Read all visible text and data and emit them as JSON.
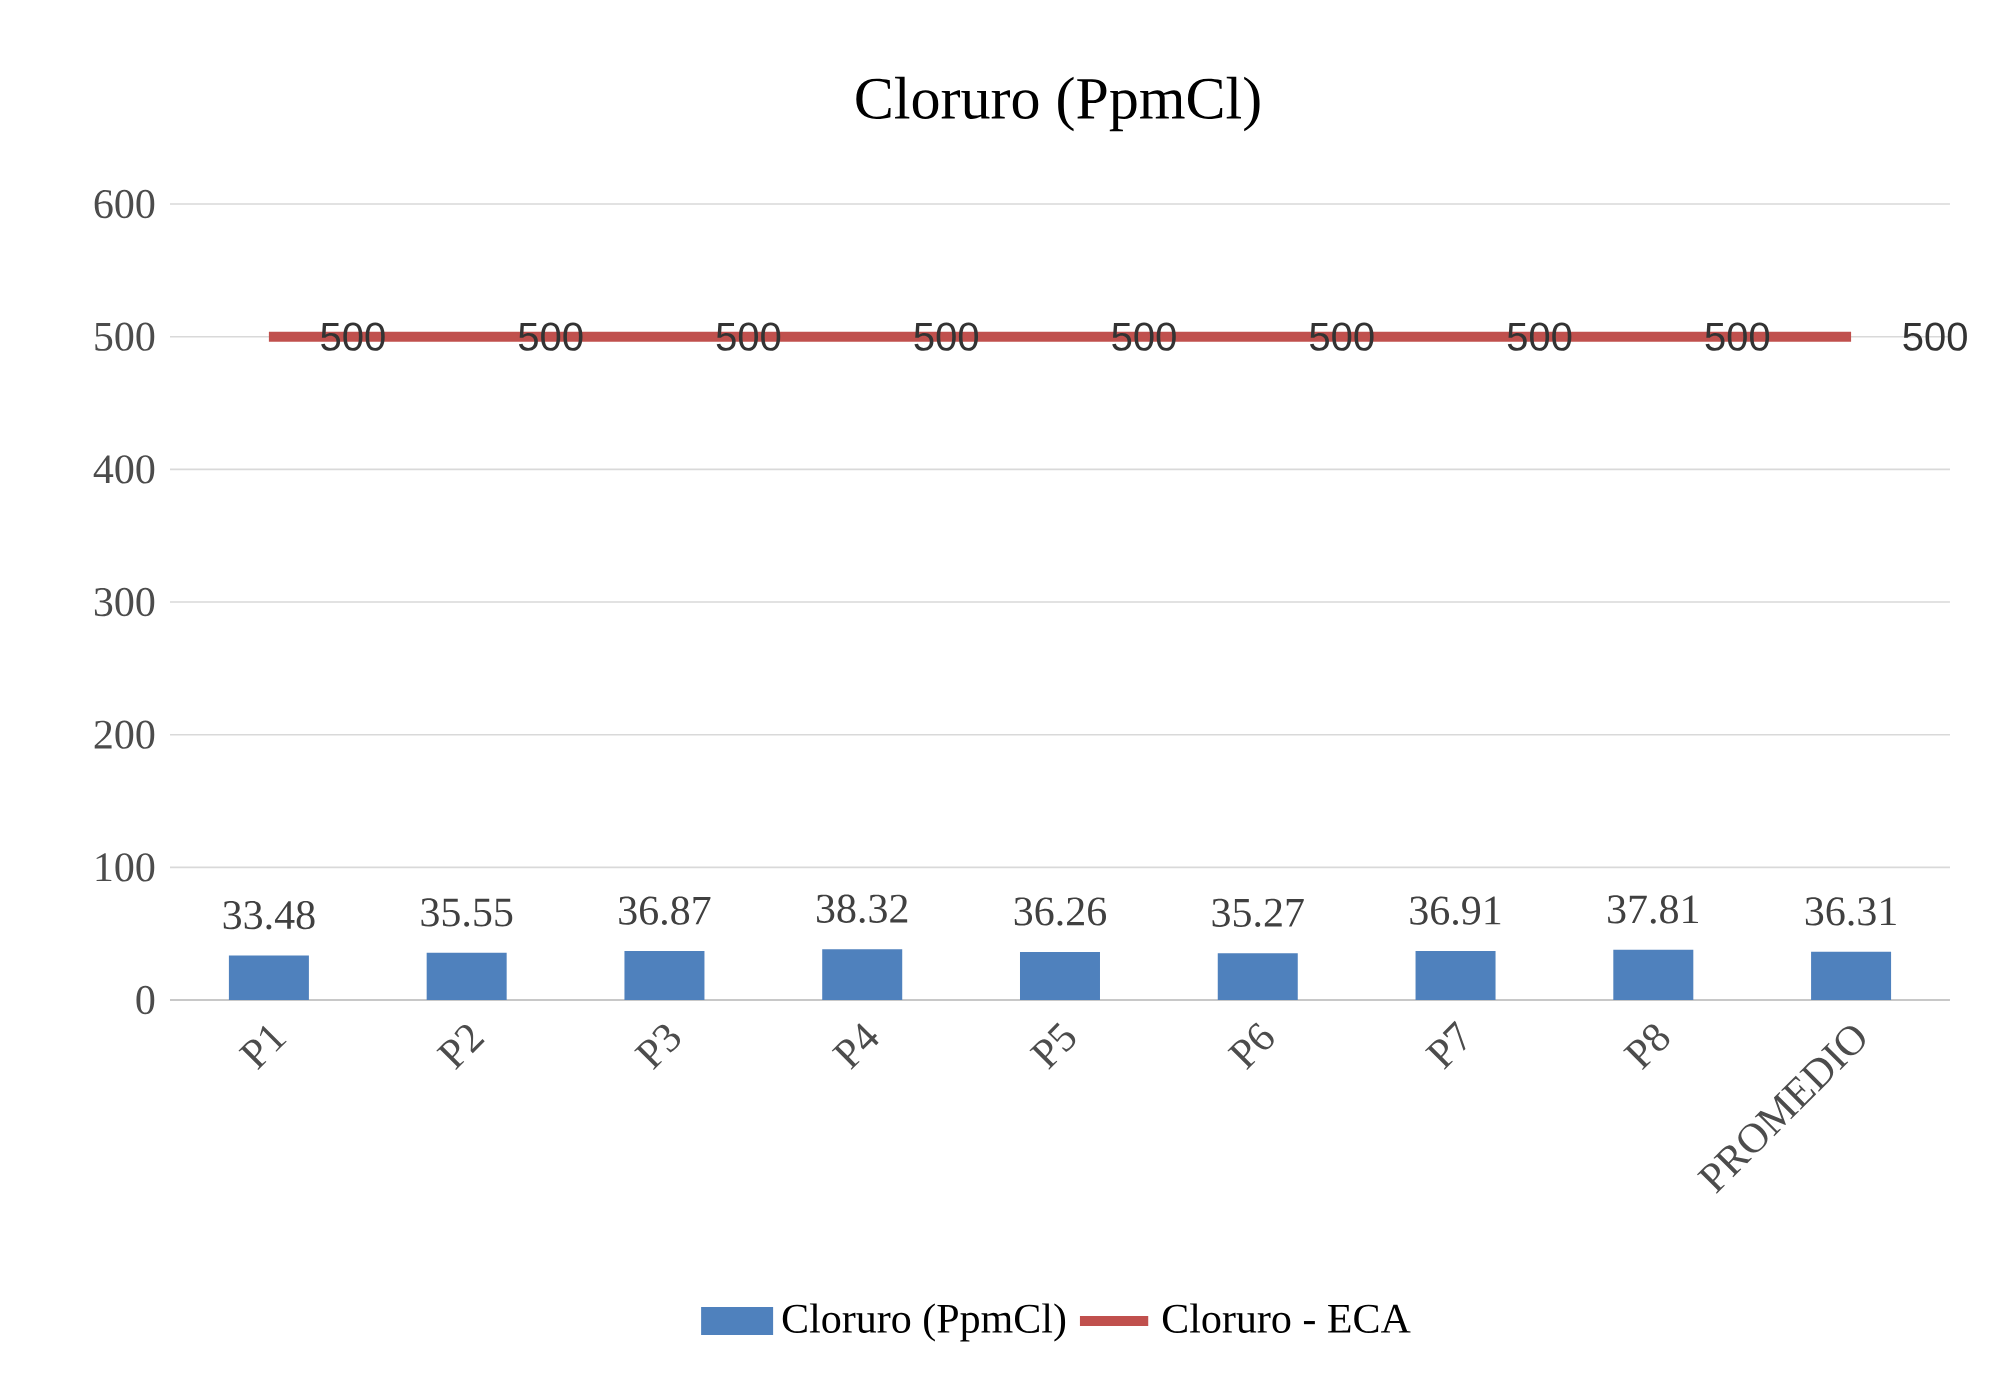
{
  "chart_data": {
    "type": "bar",
    "title": "Cloruro  (PpmCl)",
    "categories": [
      "P1",
      "P2",
      "P3",
      "P4",
      "P5",
      "P6",
      "P7",
      "P8",
      "PROMEDIO"
    ],
    "series": [
      {
        "name": "Cloruro  (PpmCl)",
        "color": "#4f81bd",
        "values": [
          33.48,
          35.55,
          36.87,
          38.32,
          36.26,
          35.27,
          36.91,
          37.81,
          36.31
        ]
      },
      {
        "name": "Cloruro - ECA",
        "type": "line",
        "color": "#c0504d",
        "values": [
          500,
          500,
          500,
          500,
          500,
          500,
          500,
          500,
          500
        ]
      }
    ],
    "ylim": [
      0,
      600
    ],
    "yticks": [
      0,
      100,
      200,
      300,
      400,
      500,
      600
    ],
    "grid": "y",
    "legend": "bottom",
    "data_labels": true
  }
}
